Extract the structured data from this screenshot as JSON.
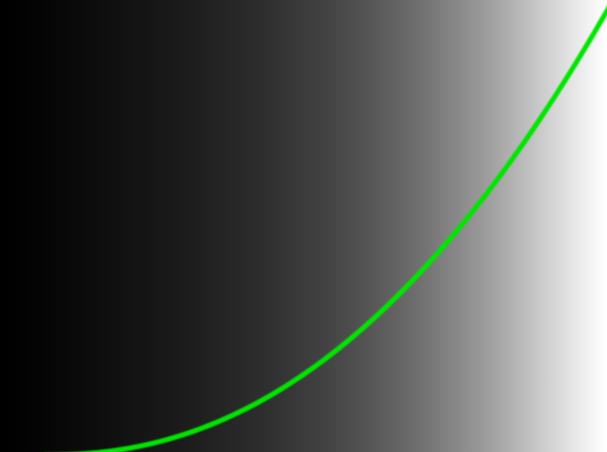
{
  "canvas": {
    "gradient_stops": [
      {
        "offset": 0.0,
        "color": "#000000"
      },
      {
        "offset": 0.05,
        "color": "#030303"
      },
      {
        "offset": 0.1,
        "color": "#080808"
      },
      {
        "offset": 0.15,
        "color": "#0c0c0c"
      },
      {
        "offset": 0.2,
        "color": "#111111"
      },
      {
        "offset": 0.25,
        "color": "#161616"
      },
      {
        "offset": 0.3,
        "color": "#1b1b1b"
      },
      {
        "offset": 0.35,
        "color": "#222222"
      },
      {
        "offset": 0.4,
        "color": "#292929"
      },
      {
        "offset": 0.45,
        "color": "#313131"
      },
      {
        "offset": 0.5,
        "color": "#3b3b3b"
      },
      {
        "offset": 0.55,
        "color": "#464646"
      },
      {
        "offset": 0.6,
        "color": "#535353"
      },
      {
        "offset": 0.65,
        "color": "#626262"
      },
      {
        "offset": 0.7,
        "color": "#737373"
      },
      {
        "offset": 0.75,
        "color": "#878787"
      },
      {
        "offset": 0.8,
        "color": "#9c9c9c"
      },
      {
        "offset": 0.85,
        "color": "#b5b5b5"
      },
      {
        "offset": 0.9,
        "color": "#cfcfcf"
      },
      {
        "offset": 0.95,
        "color": "#e9e9e9"
      },
      {
        "offset": 1.0,
        "color": "#ffffff"
      }
    ],
    "curve": {
      "color": "#00e600",
      "exponent": 2.2
    }
  }
}
